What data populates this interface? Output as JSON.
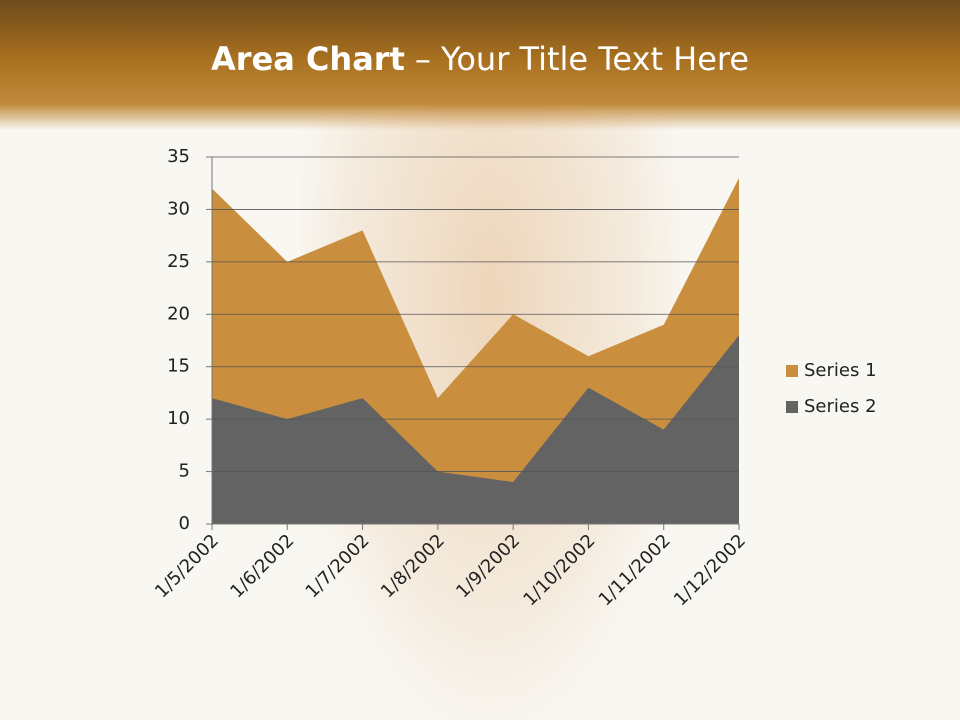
{
  "chart_data": {
    "type": "area",
    "title": [
      "Area Chart",
      "– Your Title Text Here"
    ],
    "categories": [
      "1/5/2002",
      "1/6/2002",
      "1/7/2002",
      "1/8/2002",
      "1/9/2002",
      "1/10/2002",
      "1/11/2002",
      "1/12/2002"
    ],
    "series": [
      {
        "name": "Series 1",
        "color": "#c98f3e",
        "values": [
          32,
          25,
          28,
          12,
          20,
          16,
          19,
          33
        ]
      },
      {
        "name": "Series 2",
        "color": "#636363",
        "values": [
          12,
          10,
          12,
          5,
          4,
          13,
          9,
          18
        ]
      }
    ],
    "ylim": [
      0,
      35
    ],
    "yticks": [
      0,
      5,
      10,
      15,
      20,
      25,
      30,
      35
    ],
    "grid": true,
    "legend": "right"
  }
}
